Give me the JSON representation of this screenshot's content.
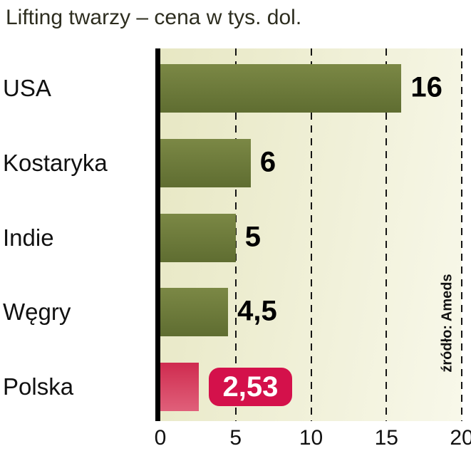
{
  "chart_data": {
    "type": "bar",
    "orientation": "horizontal",
    "title": "Lifting twarzy – cena w tys. dol.",
    "categories": [
      "USA",
      "Kostaryka",
      "Indie",
      "Węgry",
      "Polska"
    ],
    "values": [
      16,
      6,
      5,
      4.5,
      2.53
    ],
    "value_labels": [
      "16",
      "6",
      "5",
      "4,5",
      "2,53"
    ],
    "highlight_index": 4,
    "highlight_category": "Polska",
    "unit": "tys. dol.",
    "xlim": [
      0,
      20
    ],
    "x_ticks": [
      0,
      5,
      10,
      15,
      20
    ],
    "grid": "dashed-vertical",
    "legend": "none",
    "source": "źródło: Ameds",
    "colors": {
      "bar_top": "#7b8845",
      "bar_bottom": "#5f6d31",
      "highlight_top": "#cf2b4f",
      "highlight_bottom": "#e0607a",
      "badge_bg": "#d4114b",
      "badge_text": "#ffffff",
      "plot_bg_left": "#e7e7c3",
      "plot_bg_right": "#f8f8ea",
      "grid": "#141414",
      "axis": "#000000",
      "title_text": "#2d2d1f",
      "label_text": "#111111",
      "value_text": "#000000"
    }
  }
}
